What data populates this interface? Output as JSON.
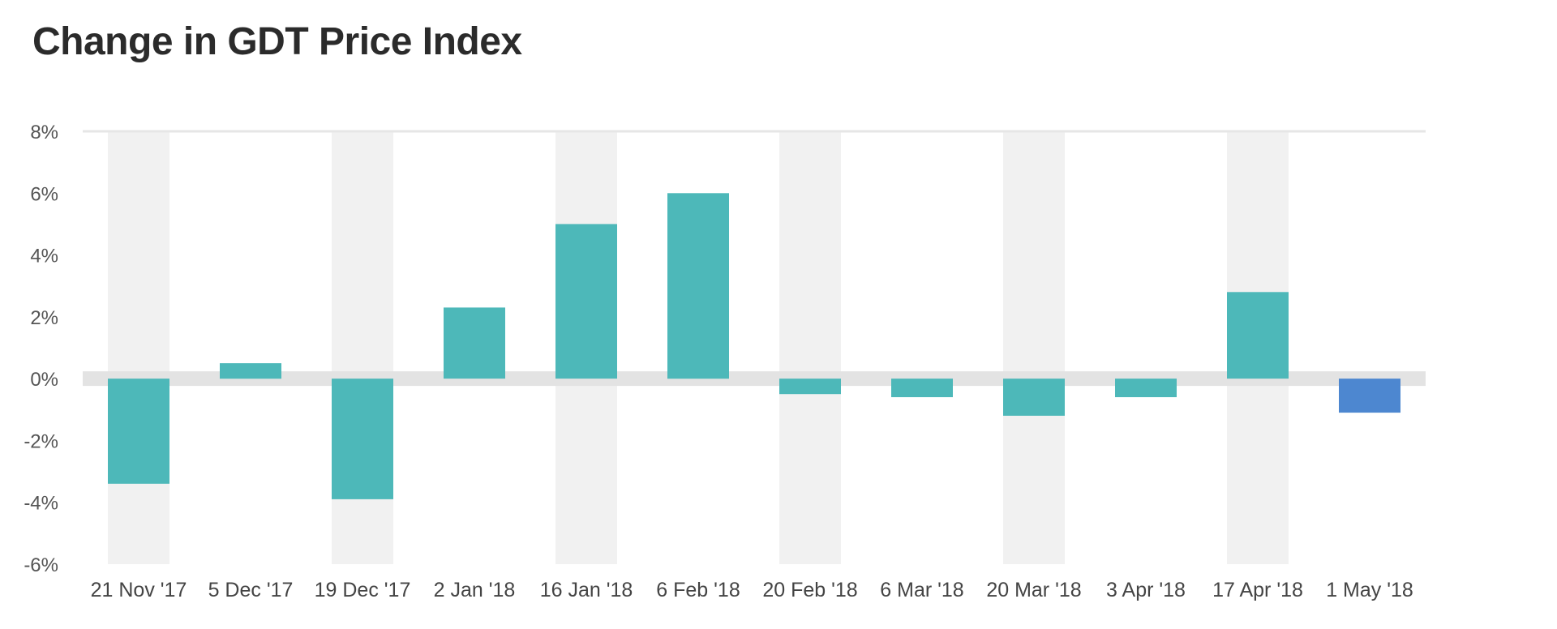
{
  "title": "Change in GDT Price Index",
  "colors": {
    "bar": "#4db8b9",
    "highlight": "#4d87d0",
    "band": "#f1f1f1",
    "zero_band": "#e3e3e3",
    "axis_text": "#555555"
  },
  "chart_data": {
    "type": "bar",
    "title": "Change in GDT Price Index",
    "xlabel": "",
    "ylabel": "",
    "ylim": [
      -6,
      8
    ],
    "yticks": [
      8,
      6,
      4,
      2,
      0,
      -2,
      -4,
      -6
    ],
    "ytick_labels": [
      "8%",
      "6%",
      "4%",
      "2%",
      "0%",
      "-2%",
      "-4%",
      "-6%"
    ],
    "categories": [
      "21 Nov '17",
      "5 Dec '17",
      "19 Dec '17",
      "2 Jan '18",
      "16 Jan '18",
      "6 Feb '18",
      "20 Feb '18",
      "6 Mar '18",
      "20 Mar '18",
      "3 Apr '18",
      "17 Apr '18",
      "1 May '18"
    ],
    "values": [
      -3.4,
      0.5,
      -3.9,
      2.3,
      5.0,
      6.0,
      -0.5,
      -0.6,
      -1.2,
      -0.6,
      2.8,
      -1.1
    ],
    "highlight_index": 11,
    "grid": false,
    "legend": "none"
  }
}
